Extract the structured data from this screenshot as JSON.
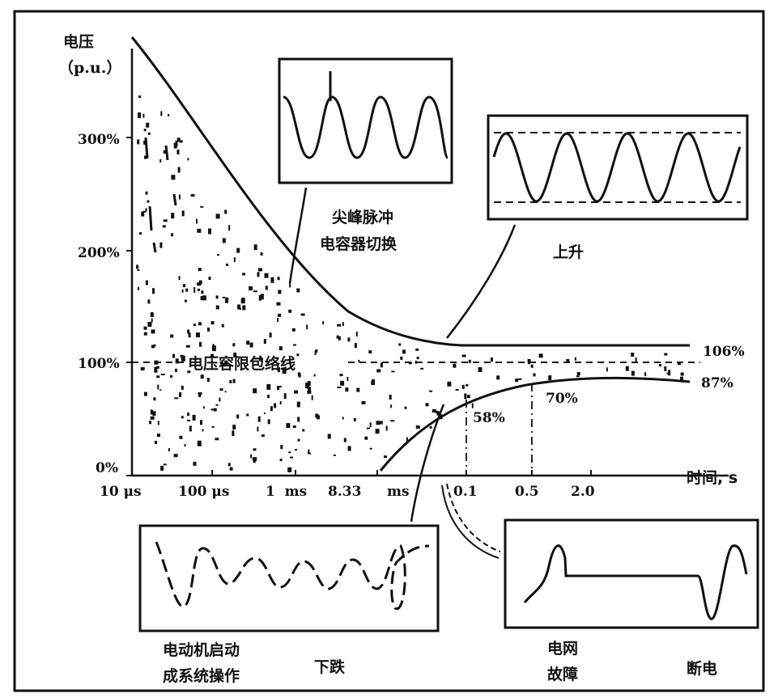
{
  "chart_data": {
    "type": "line",
    "ylabel": "电压\n（p.u.）",
    "xlabel": "时间, s",
    "x_ticks": [
      "10 μs",
      "100 μs",
      "1  ms",
      "8.33",
      "ms",
      "0.1",
      "0.5",
      "2.0"
    ],
    "y_ticks": [
      "300%",
      "200%",
      "100%",
      "0%"
    ],
    "ylim": [
      0,
      350
    ],
    "reference_line": {
      "label": "电压容限包络线",
      "value": 100
    },
    "series": [
      {
        "role": "upper",
        "end_label": "106%",
        "end_value": 106
      },
      {
        "role": "lower",
        "end_label": "87%",
        "end_value": 87
      }
    ],
    "markers": [
      {
        "label": "58%",
        "x": "0.1",
        "value": 58
      },
      {
        "label": "70%",
        "x": "0.5",
        "value": 70
      }
    ],
    "insets": [
      {
        "id": "spike",
        "caption_lines": [
          "尖峰脉冲",
          "电容器切换"
        ]
      },
      {
        "id": "swell",
        "caption_lines": [
          "上升"
        ]
      },
      {
        "id": "sag",
        "caption_lines": [
          "电动机启动",
          "成系统操作"
        ],
        "side_caption": "下跌"
      },
      {
        "id": "outage",
        "caption_lines": [
          "电网",
          "故障"
        ],
        "side_caption": "断电"
      }
    ]
  }
}
